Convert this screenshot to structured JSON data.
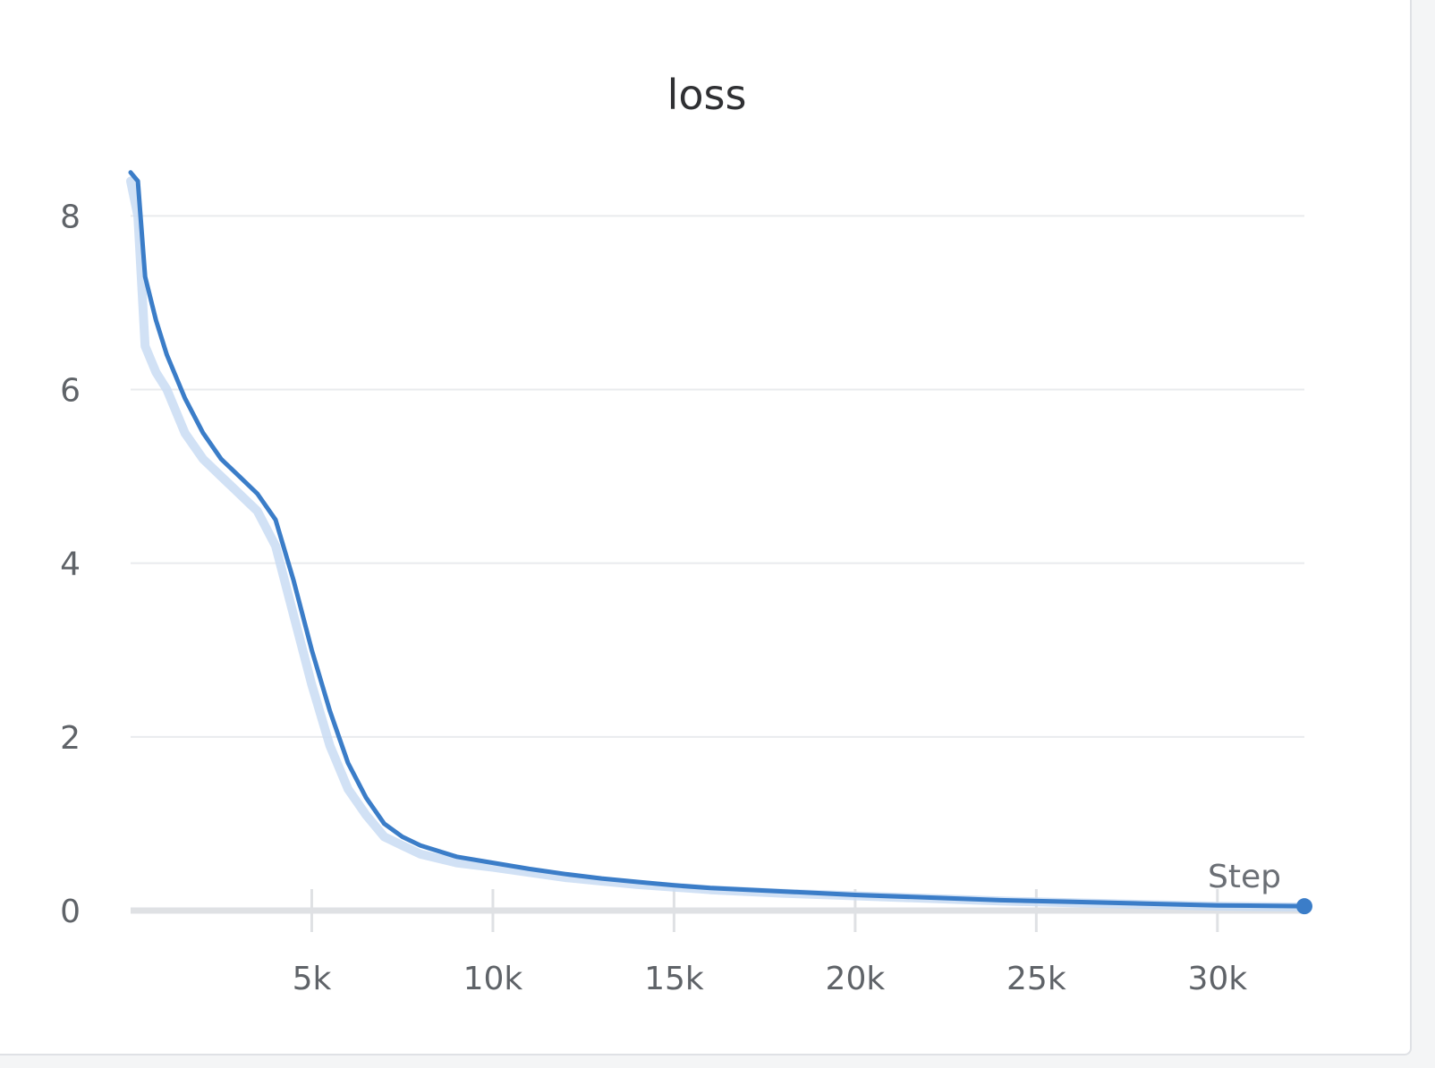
{
  "chart_data": {
    "type": "line",
    "title": "loss",
    "xlabel": "Step",
    "ylabel": "",
    "xlim": [
      0,
      32400
    ],
    "ylim": [
      0,
      8.9
    ],
    "x_ticks": [
      5000,
      10000,
      15000,
      20000,
      25000,
      30000
    ],
    "x_tick_labels": [
      "5k",
      "10k",
      "15k",
      "20k",
      "25k",
      "30k"
    ],
    "y_ticks": [
      0,
      2,
      4,
      6,
      8
    ],
    "y_tick_labels": [
      "0",
      "2",
      "4",
      "6",
      "8"
    ],
    "grid": true,
    "legend": "none",
    "colors": {
      "smoothed": "#3b7dc8",
      "raw": "#c9dcf3",
      "grid": "#e9ebee",
      "axis": "#dfe1e4"
    },
    "series": [
      {
        "role": "smoothed",
        "x": [
          0,
          200,
          400,
          700,
          1000,
          1500,
          2000,
          2500,
          3000,
          3500,
          4000,
          4500,
          5000,
          5500,
          6000,
          6500,
          7000,
          7500,
          8000,
          9000,
          10000,
          11000,
          12000,
          13000,
          14000,
          15000,
          16000,
          18000,
          20000,
          22000,
          24000,
          26000,
          28000,
          30000,
          32400
        ],
        "y": [
          8.5,
          8.4,
          7.3,
          6.8,
          6.4,
          5.9,
          5.5,
          5.2,
          5.0,
          4.8,
          4.5,
          3.8,
          3.0,
          2.3,
          1.7,
          1.3,
          1.0,
          0.85,
          0.75,
          0.62,
          0.55,
          0.48,
          0.42,
          0.37,
          0.33,
          0.29,
          0.26,
          0.22,
          0.18,
          0.15,
          0.12,
          0.1,
          0.08,
          0.06,
          0.05
        ]
      },
      {
        "role": "raw",
        "x": [
          0,
          200,
          400,
          700,
          1000,
          1500,
          2000,
          2500,
          3000,
          3500,
          4000,
          4500,
          5000,
          5500,
          6000,
          6500,
          7000,
          7500,
          8000,
          9000,
          10000,
          11000,
          12000,
          13000,
          14000,
          15000,
          16000,
          18000,
          20000,
          22000,
          24000,
          26000,
          28000,
          30000,
          32400
        ],
        "y": [
          8.4,
          8.0,
          6.5,
          6.2,
          6.0,
          5.5,
          5.2,
          5.0,
          4.8,
          4.6,
          4.2,
          3.4,
          2.6,
          1.9,
          1.4,
          1.1,
          0.85,
          0.75,
          0.65,
          0.55,
          0.5,
          0.44,
          0.38,
          0.34,
          0.3,
          0.27,
          0.24,
          0.2,
          0.17,
          0.14,
          0.11,
          0.09,
          0.07,
          0.05,
          0.04
        ]
      }
    ]
  }
}
